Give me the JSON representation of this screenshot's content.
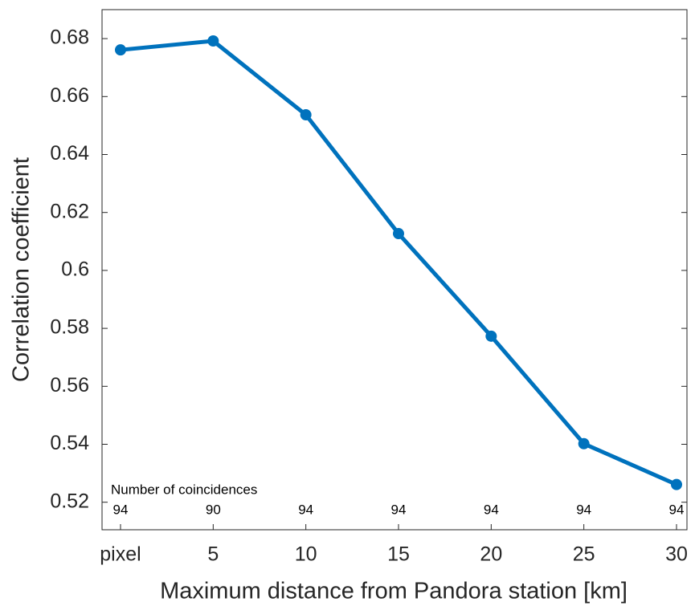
{
  "chart_data": {
    "type": "line",
    "xlabel": "Maximum distance from Pandora station [km]",
    "ylabel": "Correlation coefficient",
    "categories": [
      "pixel",
      "5",
      "10",
      "15",
      "20",
      "25",
      "30"
    ],
    "series": [
      {
        "name": "Correlation coefficient",
        "color": "#0072bd",
        "values": [
          0.6761,
          0.6792,
          0.6537,
          0.6127,
          0.5773,
          0.5402,
          0.5261
        ]
      }
    ],
    "ylim": [
      0.5105,
      0.69
    ],
    "yticks": [
      0.52,
      0.54,
      0.56,
      0.58,
      0.6,
      0.62,
      0.64,
      0.66,
      0.68
    ],
    "annotation": "Number of coincidences",
    "coincidences": [
      94,
      90,
      94,
      94,
      94,
      94,
      94
    ]
  }
}
